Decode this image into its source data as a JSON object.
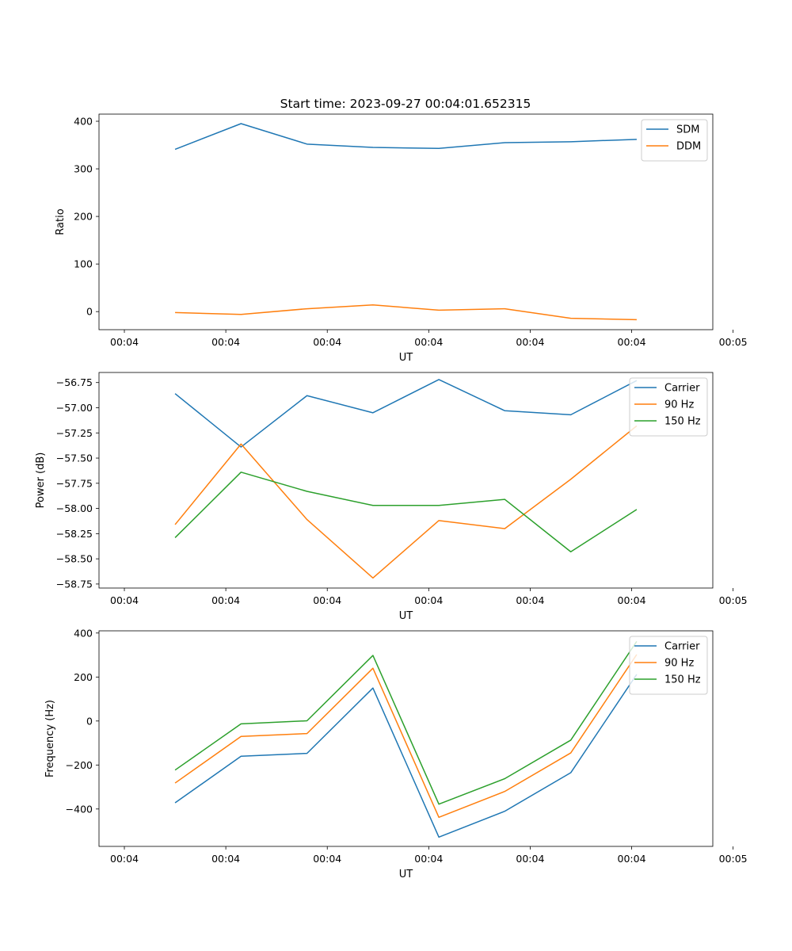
{
  "figure_title": "Start time: 2023-09-27 00:04:01.652315",
  "chart_data": [
    {
      "type": "line",
      "xlabel": "UT",
      "ylabel": "Ratio",
      "xlim": [
        -0.5,
        11.6
      ],
      "ylim": [
        -38,
        415
      ],
      "x": [
        1,
        2.3,
        3.6,
        4.9,
        6.2,
        7.5,
        8.8,
        10.1
      ],
      "x_ticks": [
        0,
        2,
        4,
        6,
        8,
        10,
        12
      ],
      "x_tick_labels": [
        "00:04",
        "00:04",
        "00:04",
        "00:04",
        "00:04",
        "00:04",
        "00:05"
      ],
      "y_ticks": [
        0,
        100,
        200,
        300,
        400
      ],
      "y_tick_labels": [
        "0",
        "100",
        "200",
        "300",
        "400"
      ],
      "legend_position": "top-right",
      "series": [
        {
          "name": "SDM",
          "color": "#1f77b4",
          "values": [
            341,
            395,
            352,
            345,
            343,
            355,
            357,
            362
          ]
        },
        {
          "name": "DDM",
          "color": "#ff7f0e",
          "values": [
            -2,
            -6,
            6,
            14,
            3,
            6,
            -14,
            -17
          ]
        }
      ]
    },
    {
      "type": "line",
      "xlabel": "UT",
      "ylabel": "Power (dB)",
      "xlim": [
        -0.5,
        11.6
      ],
      "ylim": [
        -58.79,
        -56.65
      ],
      "x": [
        1,
        2.3,
        3.6,
        4.9,
        6.2,
        7.5,
        8.8,
        10.1
      ],
      "x_ticks": [
        0,
        2,
        4,
        6,
        8,
        10,
        12
      ],
      "x_tick_labels": [
        "00:04",
        "00:04",
        "00:04",
        "00:04",
        "00:04",
        "00:04",
        "00:05"
      ],
      "y_ticks": [
        -58.75,
        -58.5,
        -58.25,
        -58.0,
        -57.75,
        -57.5,
        -57.25,
        -57.0,
        -56.75
      ],
      "y_tick_labels": [
        "−58.75",
        "−58.50",
        "−58.25",
        "−58.00",
        "−57.75",
        "−57.50",
        "−57.25",
        "−57.00",
        "−56.75"
      ],
      "legend_position": "top-right",
      "series": [
        {
          "name": "Carrier",
          "color": "#1f77b4",
          "values": [
            -56.86,
            -57.39,
            -56.88,
            -57.05,
            -56.72,
            -57.03,
            -57.07,
            -56.73
          ]
        },
        {
          "name": "90 Hz",
          "color": "#ff7f0e",
          "values": [
            -58.16,
            -57.36,
            -58.11,
            -58.69,
            -58.12,
            -58.2,
            -57.71,
            -57.18
          ]
        },
        {
          "name": "150 Hz",
          "color": "#2ca02c",
          "values": [
            -58.29,
            -57.64,
            -57.83,
            -57.97,
            -57.97,
            -57.91,
            -58.43,
            -58.01
          ]
        }
      ]
    },
    {
      "type": "line",
      "xlabel": "UT",
      "ylabel": "Frequency (Hz)",
      "xlim": [
        -0.5,
        11.6
      ],
      "ylim": [
        -570,
        410
      ],
      "x": [
        1,
        2.3,
        3.6,
        4.9,
        6.2,
        7.5,
        8.8,
        10.1
      ],
      "x_ticks": [
        0,
        2,
        4,
        6,
        8,
        10,
        12
      ],
      "x_tick_labels": [
        "00:04",
        "00:04",
        "00:04",
        "00:04",
        "00:04",
        "00:04",
        "00:05"
      ],
      "y_ticks": [
        -400,
        -200,
        0,
        200,
        400
      ],
      "y_tick_labels": [
        "−400",
        "−200",
        "0",
        "200",
        "400"
      ],
      "legend_position": "top-right",
      "series": [
        {
          "name": "Carrier",
          "color": "#1f77b4",
          "values": [
            -372,
            -160,
            -147,
            150,
            -528,
            -410,
            -235,
            212
          ]
        },
        {
          "name": "90 Hz",
          "color": "#ff7f0e",
          "values": [
            -282,
            -70,
            -57,
            240,
            -438,
            -320,
            -145,
            302
          ]
        },
        {
          "name": "150 Hz",
          "color": "#2ca02c",
          "values": [
            -223,
            -13,
            1,
            298,
            -378,
            -262,
            -87,
            362
          ]
        }
      ]
    }
  ]
}
